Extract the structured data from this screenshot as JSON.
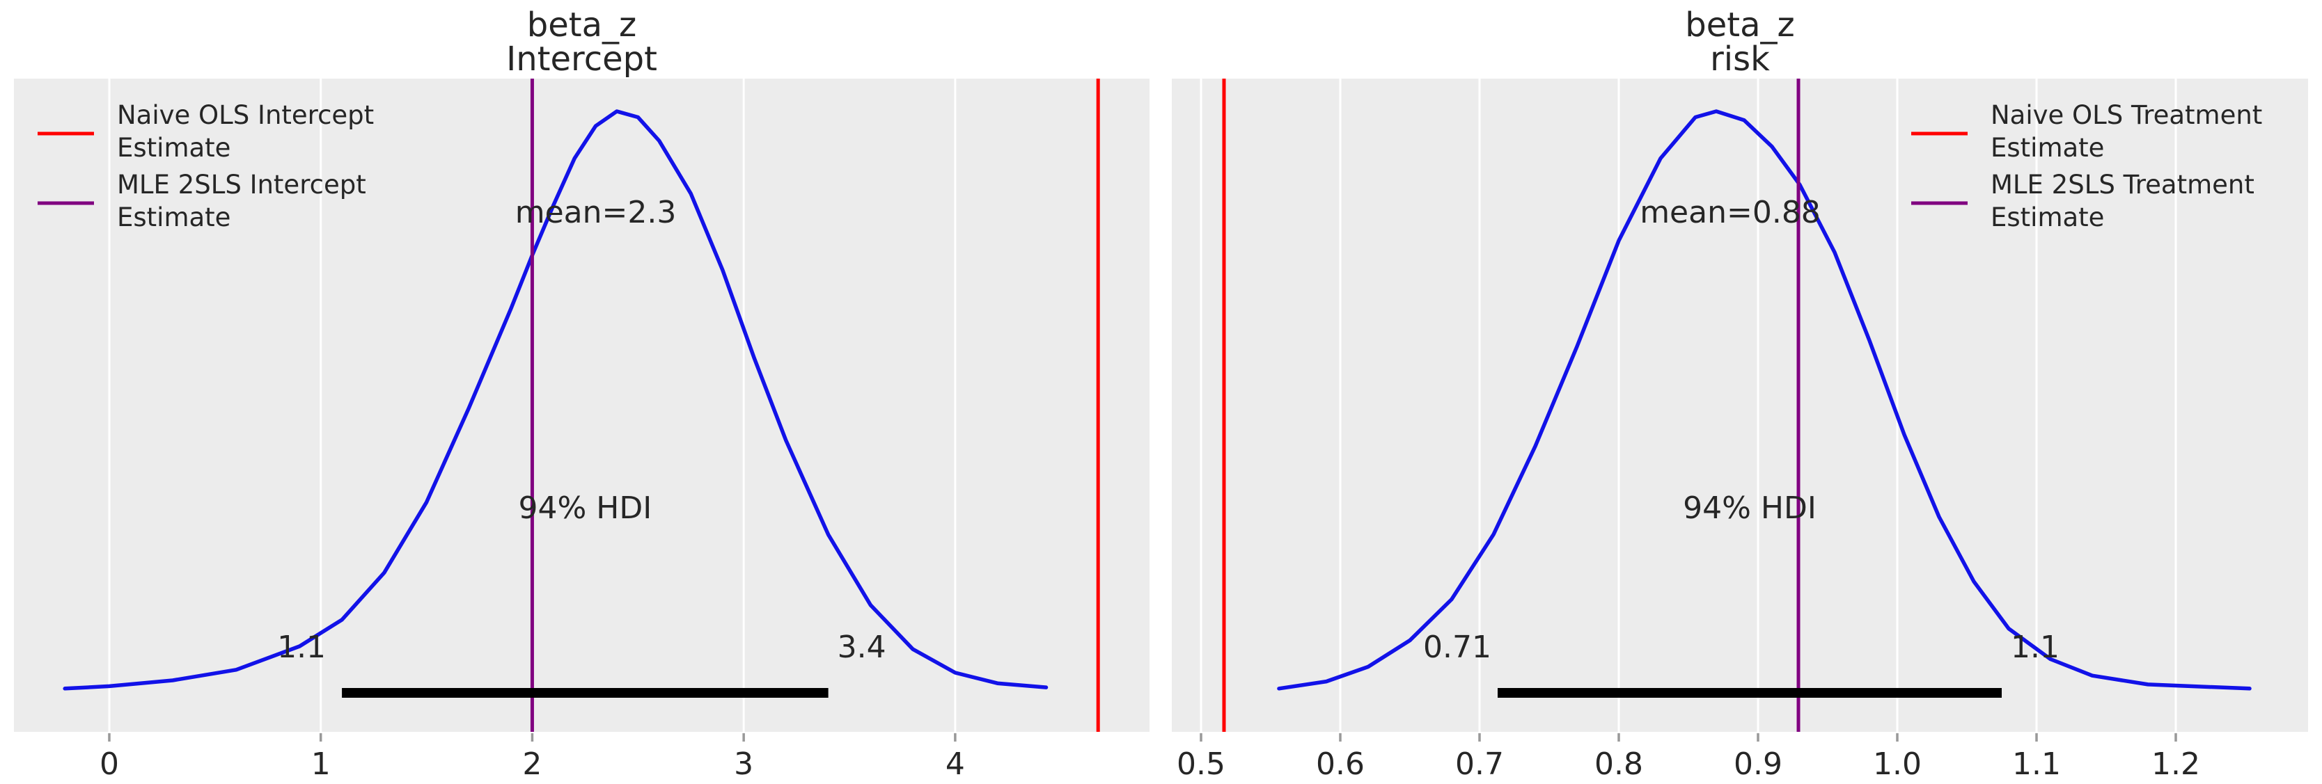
{
  "figure": {
    "background": "#ffffff",
    "axes_background": "#ececec",
    "grid_color": "#ffffff",
    "curve_color": "#1212e8",
    "text_color": "#262626",
    "tick_mark_color": "#999999",
    "hdi_bar_color": "#000000",
    "red_line_color": "#ff0000",
    "purple_line_color": "#800080"
  },
  "chart_data": [
    {
      "type": "line",
      "name": "intercept",
      "title_lines": [
        "beta_z",
        "Intercept"
      ],
      "xlabel": "",
      "ylabel": "",
      "grid": true,
      "legend_position": "upper-left",
      "xlim": [
        -0.451,
        4.919
      ],
      "xticks": {
        "values": [
          0,
          1,
          2,
          3,
          4
        ],
        "labels": [
          "0",
          "1",
          "2",
          "3",
          "4"
        ]
      },
      "kde": {
        "x": [
          -0.21,
          0.0,
          0.3,
          0.6,
          0.9,
          1.1,
          1.3,
          1.5,
          1.7,
          1.9,
          2.0,
          2.1,
          2.2,
          2.3,
          2.4,
          2.5,
          2.6,
          2.75,
          2.9,
          3.05,
          3.2,
          3.4,
          3.6,
          3.8,
          4.0,
          4.2,
          4.43
        ],
        "h": [
          0.018,
          0.022,
          0.032,
          0.05,
          0.09,
          0.135,
          0.215,
          0.335,
          0.495,
          0.665,
          0.755,
          0.84,
          0.92,
          0.975,
          1.0,
          0.99,
          0.95,
          0.86,
          0.73,
          0.58,
          0.44,
          0.28,
          0.16,
          0.085,
          0.045,
          0.027,
          0.02
        ]
      },
      "mean": {
        "value": 2.3,
        "label": "mean=2.3"
      },
      "hdi": {
        "lo": 1.1,
        "hi": 3.4,
        "lo_label": "1.1",
        "hi_label": "3.4",
        "text": "94% HDI"
      },
      "ref_lines": [
        {
          "name": "naive-ols",
          "value": 4.676,
          "color": "#ff0000",
          "legend_lines": [
            "Naive OLS Intercept",
            " Estimate"
          ]
        },
        {
          "name": "mle-2sls",
          "value": 2.0,
          "color": "#800080",
          "legend_lines": [
            "MLE 2SLS Intercept",
            " Estimate"
          ]
        }
      ]
    },
    {
      "type": "line",
      "name": "risk",
      "title_lines": [
        "beta_z",
        "risk"
      ],
      "xlabel": "",
      "ylabel": "",
      "grid": true,
      "legend_position": "upper-right",
      "xlim": [
        0.479,
        1.295
      ],
      "xticks": {
        "values": [
          0.5,
          0.6,
          0.7,
          0.8,
          0.9,
          1.0,
          1.1,
          1.2
        ],
        "labels": [
          "0.5",
          "0.6",
          "0.7",
          "0.8",
          "0.9",
          "1.0",
          "1.1",
          "1.2"
        ]
      },
      "kde": {
        "x": [
          0.556,
          0.59,
          0.62,
          0.65,
          0.68,
          0.71,
          0.74,
          0.77,
          0.8,
          0.83,
          0.855,
          0.87,
          0.89,
          0.91,
          0.93,
          0.955,
          0.98,
          1.005,
          1.03,
          1.055,
          1.08,
          1.11,
          1.14,
          1.18,
          1.253
        ],
        "h": [
          0.018,
          0.03,
          0.055,
          0.1,
          0.17,
          0.28,
          0.43,
          0.6,
          0.78,
          0.92,
          0.99,
          1.0,
          0.985,
          0.94,
          0.875,
          0.76,
          0.61,
          0.45,
          0.31,
          0.2,
          0.12,
          0.068,
          0.04,
          0.025,
          0.018
        ]
      },
      "mean": {
        "value": 0.88,
        "label": "mean=0.88"
      },
      "hdi": {
        "lo": 0.713,
        "hi": 1.075,
        "lo_label": "0.71",
        "hi_label": "1.1",
        "text": "94% HDI"
      },
      "ref_lines": [
        {
          "name": "naive-ols",
          "value": 0.5165,
          "color": "#ff0000",
          "legend_lines": [
            "Naive OLS Treatment",
            " Estimate"
          ]
        },
        {
          "name": "mle-2sls",
          "value": 0.929,
          "color": "#800080",
          "legend_lines": [
            "MLE 2SLS Treatment",
            " Estimate"
          ]
        }
      ]
    }
  ]
}
